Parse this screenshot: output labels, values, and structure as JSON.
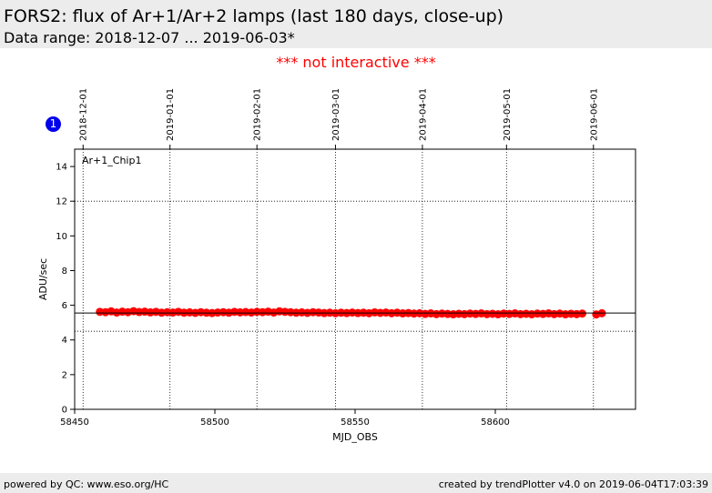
{
  "header": {
    "title": "FORS2: flux of Ar+1/Ar+2 lamps (last 180 days, close-up)",
    "subtitle": "Data range: 2018-12-07 ... 2019-06-03*"
  },
  "notice": "*** not interactive ***",
  "badge": "1",
  "footer": {
    "left": "powered by QC: www.eso.org/HC",
    "right": "created by trendPlotter v4.0 on 2019-06-04T17:03:39"
  },
  "colors": {
    "points": "#ff0000",
    "notice": "#ff0000",
    "badge": "#0000ee",
    "header_bg": "#ececec"
  },
  "chart_data": {
    "type": "scatter",
    "panel_label": "Ar+1_Chip1",
    "xlabel": "MJD_OBS",
    "ylabel": "ADU/sec",
    "xlim": [
      58450,
      58650
    ],
    "ylim": [
      0,
      15
    ],
    "x_ticks": [
      58450,
      58500,
      58550,
      58600
    ],
    "y_ticks": [
      0,
      2,
      4,
      6,
      8,
      10,
      12,
      14
    ],
    "date_ticks": [
      {
        "mjd": 58453,
        "label": "2018-12-01"
      },
      {
        "mjd": 58484,
        "label": "2019-01-01"
      },
      {
        "mjd": 58515,
        "label": "2019-02-01"
      },
      {
        "mjd": 58543,
        "label": "2019-03-01"
      },
      {
        "mjd": 58574,
        "label": "2019-04-01"
      },
      {
        "mjd": 58604,
        "label": "2019-05-01"
      },
      {
        "mjd": 58635,
        "label": "2019-06-01"
      }
    ],
    "reference_line": 5.55,
    "threshold_lines": [
      4.5,
      12.0
    ],
    "grid": "dotted vertical lines at date ticks",
    "series": [
      {
        "points": [
          [
            58459,
            5.62
          ],
          [
            58461,
            5.6
          ],
          [
            58463,
            5.65
          ],
          [
            58465,
            5.58
          ],
          [
            58467,
            5.63
          ],
          [
            58469,
            5.6
          ],
          [
            58471,
            5.66
          ],
          [
            58473,
            5.61
          ],
          [
            58475,
            5.63
          ],
          [
            58477,
            5.59
          ],
          [
            58479,
            5.62
          ],
          [
            58481,
            5.57
          ],
          [
            58483,
            5.6
          ],
          [
            58485,
            5.58
          ],
          [
            58487,
            5.62
          ],
          [
            58489,
            5.57
          ],
          [
            58491,
            5.59
          ],
          [
            58493,
            5.56
          ],
          [
            58495,
            5.6
          ],
          [
            58497,
            5.57
          ],
          [
            58499,
            5.55
          ],
          [
            58501,
            5.58
          ],
          [
            58503,
            5.6
          ],
          [
            58505,
            5.57
          ],
          [
            58507,
            5.62
          ],
          [
            58509,
            5.59
          ],
          [
            58511,
            5.61
          ],
          [
            58513,
            5.58
          ],
          [
            58515,
            5.62
          ],
          [
            58517,
            5.6
          ],
          [
            58519,
            5.63
          ],
          [
            58521,
            5.58
          ],
          [
            58523,
            5.65
          ],
          [
            58525,
            5.62
          ],
          [
            58527,
            5.6
          ],
          [
            58529,
            5.57
          ],
          [
            58531,
            5.59
          ],
          [
            58533,
            5.56
          ],
          [
            58535,
            5.6
          ],
          [
            58537,
            5.58
          ],
          [
            58539,
            5.55
          ],
          [
            58541,
            5.57
          ],
          [
            58543,
            5.54
          ],
          [
            58545,
            5.57
          ],
          [
            58547,
            5.55
          ],
          [
            58549,
            5.58
          ],
          [
            58551,
            5.55
          ],
          [
            58553,
            5.57
          ],
          [
            58555,
            5.54
          ],
          [
            58557,
            5.59
          ],
          [
            58559,
            5.56
          ],
          [
            58561,
            5.58
          ],
          [
            58563,
            5.54
          ],
          [
            58565,
            5.57
          ],
          [
            58567,
            5.53
          ],
          [
            58569,
            5.55
          ],
          [
            58571,
            5.52
          ],
          [
            58573,
            5.54
          ],
          [
            58575,
            5.5
          ],
          [
            58577,
            5.53
          ],
          [
            58579,
            5.49
          ],
          [
            58581,
            5.52
          ],
          [
            58583,
            5.5
          ],
          [
            58585,
            5.48
          ],
          [
            58587,
            5.51
          ],
          [
            58589,
            5.49
          ],
          [
            58591,
            5.52
          ],
          [
            58593,
            5.5
          ],
          [
            58595,
            5.53
          ],
          [
            58597,
            5.49
          ],
          [
            58599,
            5.51
          ],
          [
            58601,
            5.48
          ],
          [
            58603,
            5.52
          ],
          [
            58605,
            5.5
          ],
          [
            58607,
            5.53
          ],
          [
            58609,
            5.49
          ],
          [
            58611,
            5.51
          ],
          [
            58613,
            5.48
          ],
          [
            58615,
            5.52
          ],
          [
            58617,
            5.5
          ],
          [
            58619,
            5.53
          ],
          [
            58621,
            5.49
          ],
          [
            58623,
            5.52
          ],
          [
            58625,
            5.48
          ],
          [
            58627,
            5.51
          ],
          [
            58629,
            5.49
          ],
          [
            58631,
            5.52
          ],
          [
            58636,
            5.47
          ],
          [
            58638,
            5.54
          ]
        ]
      }
    ]
  }
}
